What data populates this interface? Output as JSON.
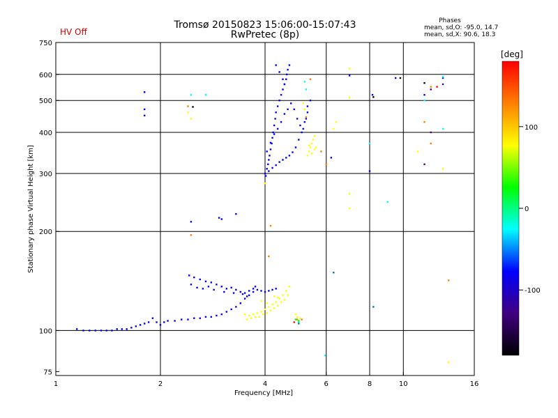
{
  "status": {
    "hv_label": "HV Off",
    "hv_color": "#cc0000"
  },
  "chart_data": {
    "type": "scatter",
    "title": "Tromsø 20150823 15:06:00-15:07:43",
    "subtitle": "RwPretec (8p)",
    "xlabel": "Frequency [MHz]",
    "ylabel": "Stationary phase Virtual Height [km]",
    "xscale": "log",
    "yscale": "log",
    "xlim": [
      1,
      16
    ],
    "ylim": [
      73,
      750
    ],
    "xticks": [
      1,
      2,
      4,
      6,
      8,
      10,
      16
    ],
    "xgrid": [
      2,
      4,
      6,
      8,
      10
    ],
    "yticks": [
      75,
      100,
      200,
      300,
      400,
      500,
      600,
      750
    ],
    "ygrid": [
      100,
      200,
      300,
      400,
      500,
      600
    ],
    "grid": true,
    "phase_stats": {
      "title": "Phases",
      "o_line": "mean, sd,O: -95.0, 14.7",
      "x_line": "mean, sd,X:  90.6, 18.3"
    },
    "colorbar": {
      "label": "[deg]",
      "range": [
        -180,
        180
      ],
      "ticks": [
        100,
        0,
        -100
      ],
      "tick_labels": [
        "100",
        "0",
        "-100"
      ],
      "colors": [
        "#ff0000",
        "#ff8000",
        "#ffff00",
        "#00ff00",
        "#00ffff",
        "#0000ff",
        "#400080",
        "#000000"
      ]
    },
    "series": [
      {
        "color": "#0000ff",
        "points": [
          [
            1.15,
            101
          ],
          [
            1.2,
            100
          ],
          [
            1.25,
            100
          ],
          [
            1.3,
            100
          ],
          [
            1.35,
            100
          ],
          [
            1.4,
            100
          ],
          [
            1.45,
            100
          ],
          [
            1.5,
            101
          ],
          [
            1.55,
            101
          ],
          [
            1.6,
            101
          ],
          [
            1.65,
            102
          ],
          [
            1.7,
            103
          ],
          [
            1.75,
            104
          ],
          [
            1.8,
            105
          ],
          [
            1.85,
            106
          ],
          [
            1.9,
            109
          ],
          [
            1.95,
            106
          ],
          [
            2.0,
            104
          ],
          [
            2.05,
            106
          ],
          [
            2.1,
            107
          ],
          [
            2.2,
            107
          ],
          [
            2.3,
            108
          ],
          [
            2.4,
            108
          ],
          [
            2.5,
            109
          ],
          [
            2.6,
            109
          ],
          [
            2.7,
            110
          ],
          [
            2.8,
            110
          ],
          [
            2.9,
            111
          ],
          [
            3.0,
            112
          ],
          [
            3.1,
            114
          ],
          [
            3.2,
            116
          ],
          [
            3.3,
            118
          ],
          [
            3.4,
            121
          ],
          [
            3.5,
            125
          ],
          [
            3.6,
            128
          ],
          [
            3.7,
            131
          ],
          [
            2.42,
            147
          ],
          [
            2.5,
            145
          ],
          [
            2.6,
            143
          ],
          [
            2.7,
            141
          ],
          [
            2.8,
            140
          ],
          [
            2.9,
            138
          ],
          [
            3.0,
            136
          ],
          [
            3.1,
            134
          ],
          [
            3.2,
            135
          ],
          [
            3.3,
            133
          ],
          [
            3.4,
            131
          ],
          [
            3.5,
            130
          ],
          [
            3.6,
            132
          ],
          [
            3.7,
            134
          ],
          [
            3.8,
            133
          ],
          [
            3.9,
            132
          ],
          [
            4.0,
            131
          ],
          [
            4.1,
            132
          ],
          [
            4.2,
            133
          ],
          [
            4.3,
            134
          ],
          [
            2.45,
            138
          ],
          [
            2.55,
            135
          ],
          [
            2.65,
            134
          ],
          [
            2.75,
            136
          ],
          [
            2.85,
            133
          ],
          [
            3.05,
            131
          ],
          [
            3.25,
            130
          ],
          [
            3.45,
            129
          ],
          [
            3.55,
            127
          ],
          [
            3.75,
            136
          ],
          [
            2.45,
            214
          ],
          [
            2.95,
            220
          ],
          [
            3.0,
            218
          ],
          [
            3.3,
            226
          ],
          [
            1.8,
            450
          ],
          [
            1.8,
            470
          ],
          [
            1.8,
            530
          ],
          [
            4.0,
            300
          ],
          [
            4.02,
            295
          ],
          [
            4.05,
            310
          ],
          [
            4.08,
            320
          ],
          [
            4.1,
            330
          ],
          [
            4.12,
            340
          ],
          [
            4.15,
            355
          ],
          [
            4.18,
            370
          ],
          [
            4.2,
            385
          ],
          [
            4.22,
            400
          ],
          [
            4.25,
            420
          ],
          [
            4.28,
            440
          ],
          [
            4.3,
            460
          ],
          [
            4.35,
            480
          ],
          [
            4.4,
            500
          ],
          [
            4.45,
            520
          ],
          [
            4.5,
            540
          ],
          [
            4.55,
            560
          ],
          [
            4.6,
            580
          ],
          [
            4.62,
            600
          ],
          [
            4.65,
            620
          ],
          [
            4.7,
            640
          ],
          [
            4.3,
            640
          ],
          [
            4.4,
            610
          ],
          [
            4.5,
            580
          ],
          [
            4.55,
            560
          ],
          [
            4.1,
            305
          ],
          [
            4.2,
            312
          ],
          [
            4.3,
            318
          ],
          [
            4.4,
            325
          ],
          [
            4.5,
            330
          ],
          [
            4.6,
            335
          ],
          [
            4.7,
            340
          ],
          [
            4.8,
            348
          ],
          [
            4.9,
            360
          ],
          [
            5.0,
            380
          ],
          [
            5.1,
            400
          ],
          [
            5.2,
            430
          ],
          [
            5.3,
            460
          ],
          [
            5.4,
            500
          ],
          [
            4.05,
            350
          ],
          [
            4.15,
            372
          ],
          [
            4.25,
            395
          ],
          [
            4.35,
            410
          ],
          [
            4.45,
            430
          ],
          [
            4.55,
            455
          ],
          [
            4.65,
            470
          ],
          [
            4.75,
            490
          ],
          [
            4.85,
            470
          ],
          [
            4.95,
            440
          ],
          [
            5.05,
            420
          ],
          [
            5.15,
            410
          ],
          [
            5.25,
            440
          ],
          [
            5.3,
            480
          ],
          [
            6.2,
            335
          ],
          [
            7.0,
            595
          ],
          [
            8.0,
            305
          ],
          [
            8.15,
            520
          ],
          [
            9.5,
            585
          ],
          [
            11.5,
            520
          ],
          [
            13.0,
            585
          ]
        ]
      },
      {
        "color": "#ffff00",
        "points": [
          [
            3.5,
            112
          ],
          [
            3.6,
            111
          ],
          [
            3.7,
            112
          ],
          [
            3.8,
            113
          ],
          [
            3.9,
            114
          ],
          [
            4.0,
            116
          ],
          [
            4.1,
            118
          ],
          [
            4.2,
            120
          ],
          [
            4.3,
            122
          ],
          [
            4.4,
            125
          ],
          [
            4.5,
            128
          ],
          [
            4.6,
            132
          ],
          [
            4.7,
            136
          ],
          [
            3.55,
            108
          ],
          [
            3.65,
            109
          ],
          [
            3.75,
            110
          ],
          [
            3.85,
            110
          ],
          [
            3.95,
            112
          ],
          [
            4.05,
            113
          ],
          [
            4.15,
            115
          ],
          [
            4.25,
            117
          ],
          [
            4.35,
            119
          ],
          [
            4.45,
            122
          ],
          [
            4.55,
            124
          ],
          [
            4.65,
            128
          ],
          [
            3.9,
            123
          ],
          [
            4.05,
            121
          ],
          [
            4.25,
            127
          ],
          [
            4.35,
            126
          ],
          [
            5.3,
            340
          ],
          [
            5.35,
            350
          ],
          [
            5.4,
            360
          ],
          [
            5.45,
            370
          ],
          [
            5.5,
            380
          ],
          [
            5.55,
            390
          ],
          [
            5.6,
            360
          ],
          [
            5.35,
            365
          ],
          [
            5.45,
            345
          ],
          [
            5.55,
            355
          ],
          [
            5.2,
            470
          ],
          [
            5.15,
            490
          ],
          [
            6.3,
            410
          ],
          [
            6.4,
            430
          ],
          [
            7.0,
            260
          ],
          [
            7.0,
            235
          ],
          [
            7.0,
            510
          ],
          [
            7.0,
            625
          ],
          [
            11.0,
            350
          ],
          [
            4.9,
            112
          ],
          [
            4.95,
            110
          ],
          [
            5.05,
            109
          ],
          [
            2.45,
            440
          ],
          [
            2.4,
            460
          ],
          [
            4.0,
            280
          ],
          [
            13.0,
            310
          ],
          [
            13.5,
            80
          ]
        ]
      },
      {
        "color": "#ff8000",
        "points": [
          [
            2.45,
            195
          ],
          [
            4.1,
            168
          ],
          [
            4.15,
            208
          ],
          [
            4.95,
            108
          ],
          [
            5.1,
            108
          ],
          [
            5.25,
            445
          ],
          [
            5.4,
            580
          ],
          [
            5.8,
            350
          ],
          [
            6.0,
            320
          ],
          [
            12.0,
            550
          ],
          [
            11.5,
            430
          ],
          [
            12.0,
            370
          ],
          [
            13.5,
            142
          ],
          [
            2.4,
            480
          ]
        ]
      },
      {
        "color": "#ff0000",
        "points": [
          [
            4.85,
            106
          ],
          [
            12.5,
            550
          ]
        ]
      },
      {
        "color": "#00ffff",
        "points": [
          [
            2.7,
            520
          ],
          [
            5.2,
            570
          ],
          [
            5.25,
            540
          ],
          [
            5.95,
            84
          ],
          [
            6.3,
            150
          ],
          [
            8.0,
            370
          ],
          [
            9.0,
            246
          ],
          [
            11.5,
            500
          ],
          [
            13.0,
            410
          ],
          [
            13.0,
            590
          ],
          [
            5.0,
            106
          ],
          [
            2.45,
            520
          ]
        ]
      },
      {
        "color": "#00ff00",
        "points": [
          [
            4.9,
            108
          ],
          [
            5.0,
            107
          ]
        ]
      },
      {
        "color": "#008080",
        "points": [
          [
            5.0,
            105
          ],
          [
            8.2,
            118
          ],
          [
            6.3,
            150
          ]
        ]
      },
      {
        "color": "#400080",
        "points": [
          [
            11.5,
            320
          ],
          [
            12.0,
            400
          ],
          [
            13.0,
            560
          ],
          [
            12.0,
            540
          ]
        ]
      },
      {
        "color": "#000000",
        "points": [
          [
            2.48,
            478
          ],
          [
            8.2,
            512
          ],
          [
            11.5,
            565
          ],
          [
            9.8,
            585
          ]
        ]
      }
    ]
  }
}
